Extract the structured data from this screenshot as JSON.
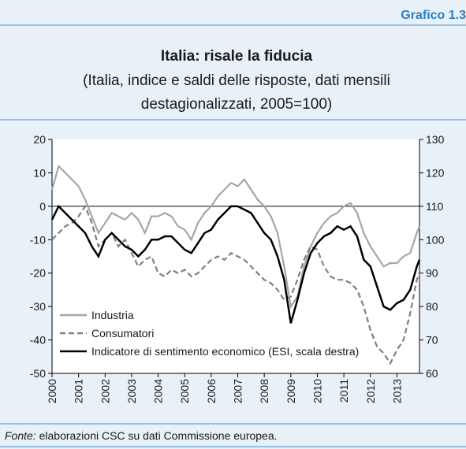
{
  "chart_data": {
    "type": "line",
    "label": "Grafico 1.3",
    "title": "Italia: risale la fiducia",
    "subtitle": [
      "(Italia, indice e saldi delle risposte, dati mensili",
      "destagionalizzati, 2005=100)"
    ],
    "source_label": "Fonte:",
    "source_text": "elaborazioni CSC su dati Commissione europea.",
    "x": [
      2000,
      2000.25,
      2000.5,
      2000.75,
      2001,
      2001.25,
      2001.5,
      2001.75,
      2002,
      2002.25,
      2002.5,
      2002.75,
      2003,
      2003.25,
      2003.5,
      2003.75,
      2004,
      2004.25,
      2004.5,
      2004.75,
      2005,
      2005.25,
      2005.5,
      2005.75,
      2006,
      2006.25,
      2006.5,
      2006.75,
      2007,
      2007.25,
      2007.5,
      2007.75,
      2008,
      2008.25,
      2008.5,
      2008.75,
      2009,
      2009.25,
      2009.5,
      2009.75,
      2010,
      2010.25,
      2010.5,
      2010.75,
      2011,
      2011.25,
      2011.5,
      2011.75,
      2012,
      2012.25,
      2012.5,
      2012.75,
      2013,
      2013.25,
      2013.5,
      2013.75,
      2013.85
    ],
    "xlim": [
      2000,
      2013.85
    ],
    "xticks": [
      2000,
      2001,
      2002,
      2003,
      2004,
      2005,
      2006,
      2007,
      2008,
      2009,
      2010,
      2011,
      2012,
      2013
    ],
    "ylim": [
      -50,
      20
    ],
    "yticks": [
      -50,
      -40,
      -30,
      -20,
      -10,
      0,
      10,
      20
    ],
    "y2lim": [
      60,
      130
    ],
    "y2ticks": [
      60,
      70,
      80,
      90,
      100,
      110,
      120,
      130
    ],
    "legend": "lower-left",
    "series": [
      {
        "name": "Industria",
        "color": "#a6a6a6",
        "style": "solid",
        "axis": "y",
        "values": [
          5,
          12,
          10,
          8,
          6,
          2,
          -3,
          -8,
          -5,
          -2,
          -3,
          -4,
          -2,
          -4,
          -8,
          -3,
          -3,
          -2,
          -3,
          -6,
          -7,
          -10,
          -5,
          -2,
          0,
          3,
          5,
          7,
          6,
          8,
          5,
          2,
          0,
          -3,
          -8,
          -18,
          -30,
          -27,
          -18,
          -12,
          -8,
          -5,
          -3,
          -2,
          0,
          1,
          -2,
          -8,
          -12,
          -15,
          -18,
          -17,
          -17,
          -15,
          -14,
          -8,
          -6
        ]
      },
      {
        "name": "Consumatori",
        "color": "#7f7f7f",
        "style": "dashed",
        "axis": "y",
        "values": [
          -10,
          -8,
          -6,
          -5,
          -3,
          0,
          -5,
          -12,
          -10,
          -8,
          -12,
          -10,
          -14,
          -18,
          -16,
          -15,
          -20,
          -21,
          -19,
          -20,
          -19,
          -21,
          -20,
          -18,
          -16,
          -15,
          -16,
          -14,
          -15,
          -16,
          -18,
          -20,
          -22,
          -23,
          -25,
          -28,
          -27,
          -22,
          -16,
          -12,
          -13,
          -18,
          -21,
          -22,
          -22,
          -23,
          -25,
          -30,
          -37,
          -42,
          -44,
          -47,
          -43,
          -40,
          -32,
          -22,
          -20
        ]
      },
      {
        "name": "Indicatore di sentimento economico (ESI, scala destra)",
        "color": "#000000",
        "style": "solid",
        "axis": "y2",
        "values": [
          106,
          110,
          108,
          106,
          104,
          102,
          98,
          95,
          100,
          102,
          100,
          98,
          97,
          95,
          97,
          100,
          100,
          101,
          101,
          99,
          97,
          96,
          99,
          102,
          103,
          106,
          108,
          110,
          110,
          109,
          108,
          105,
          102,
          100,
          95,
          88,
          75,
          82,
          90,
          96,
          99,
          101,
          102,
          104,
          103,
          104,
          101,
          94,
          92,
          86,
          80,
          79,
          81,
          82,
          85,
          92,
          94
        ]
      }
    ]
  }
}
